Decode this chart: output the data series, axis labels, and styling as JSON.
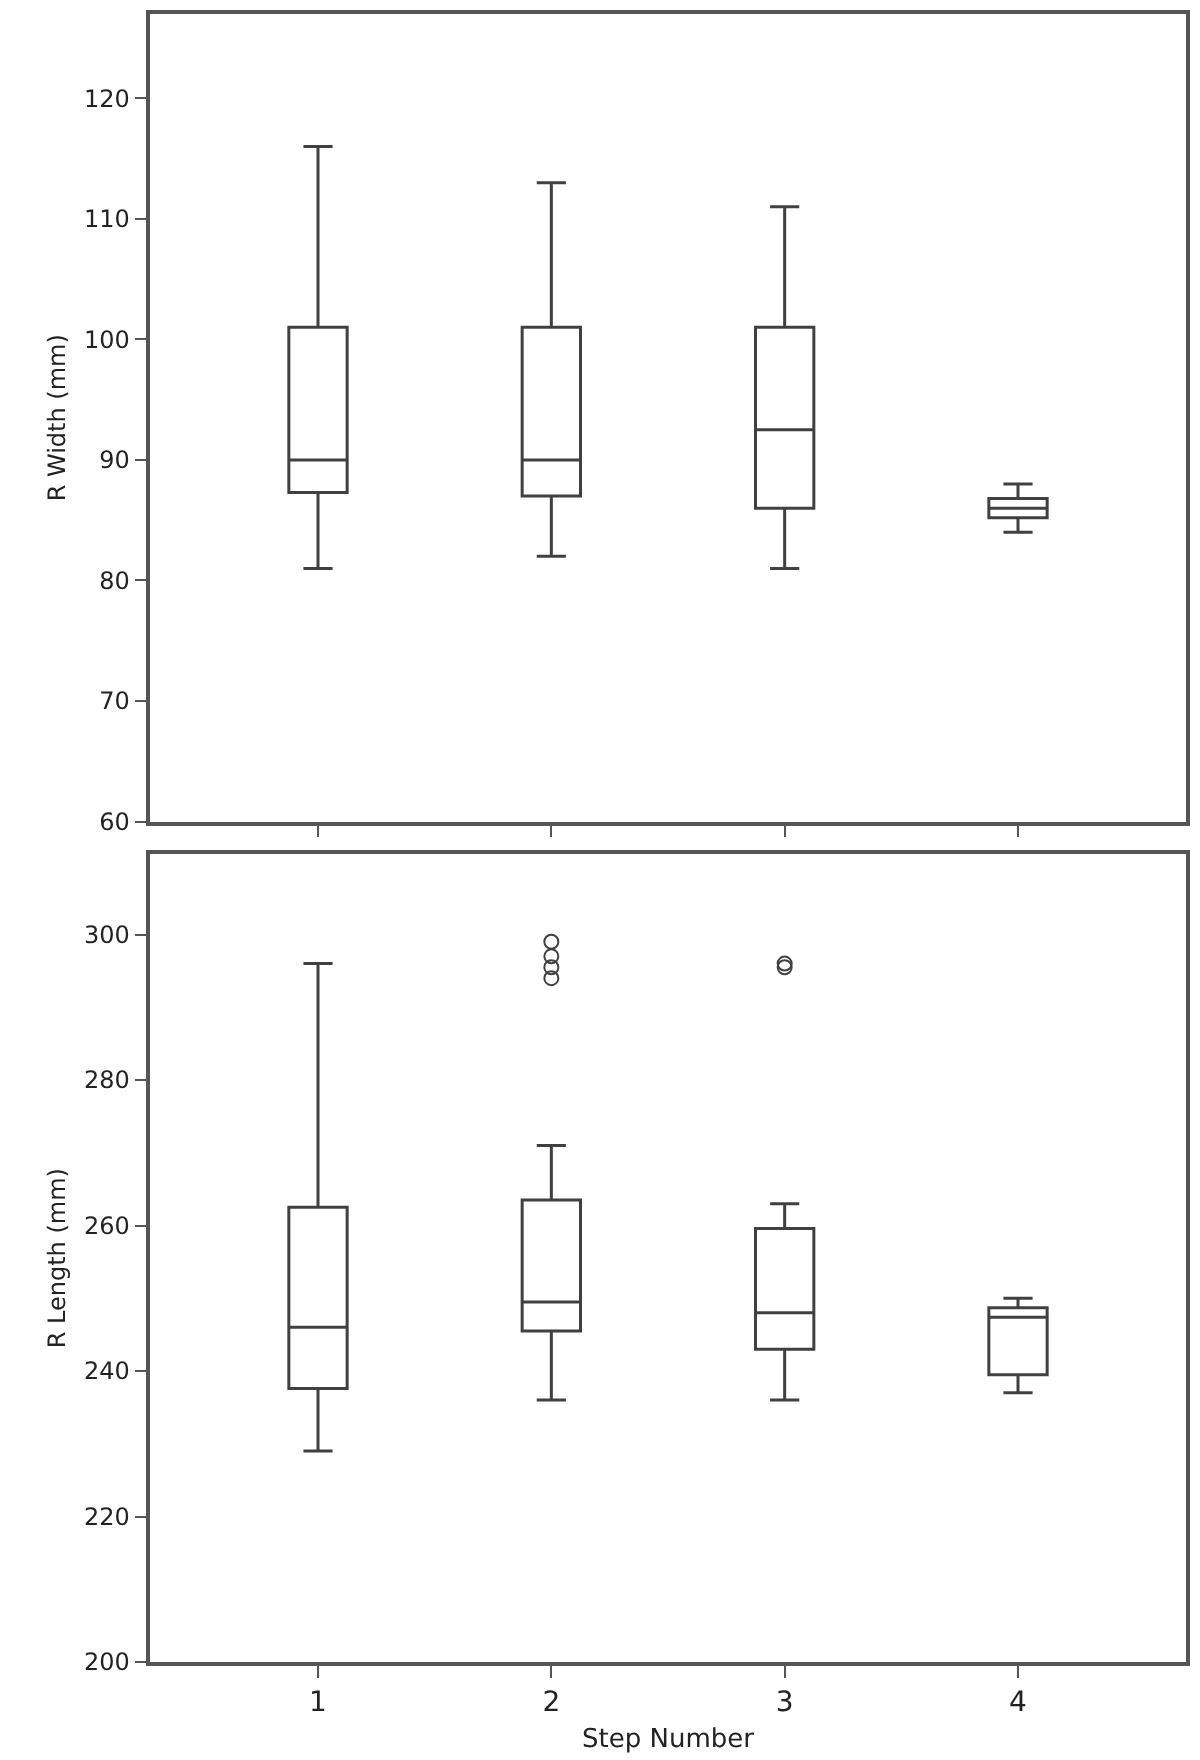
{
  "chart_data": [
    {
      "type": "box",
      "ylabel": "R Width (mm)",
      "categories": [
        "1",
        "2",
        "3",
        "4"
      ],
      "color": "#404040",
      "ylim": [
        60,
        127
      ],
      "yticks": [
        60,
        70,
        80,
        90,
        100,
        110,
        120
      ],
      "tick_labels": "y",
      "boxes": [
        {
          "low": 81,
          "q1": 87.3,
          "median": 90,
          "q3": 101,
          "high": 116
        },
        {
          "low": 82,
          "q1": 87,
          "median": 90,
          "q3": 101,
          "high": 113
        },
        {
          "low": 81,
          "q1": 86,
          "median": 92.5,
          "q3": 101,
          "high": 111
        },
        {
          "low": 84,
          "q1": 85.2,
          "median": 86,
          "q3": 86.8,
          "high": 88
        }
      ]
    },
    {
      "type": "box",
      "ylabel": "R Length (mm)",
      "xlabel": "Step Number",
      "categories": [
        "1",
        "2",
        "3",
        "4"
      ],
      "color": "#404040",
      "ylim": [
        200,
        311
      ],
      "yticks": [
        200,
        220,
        240,
        260,
        280,
        300
      ],
      "boxes": [
        {
          "low": 229,
          "q1": 237.6,
          "median": 246,
          "q3": 262.5,
          "high": 296
        },
        {
          "low": 236,
          "q1": 245.5,
          "median": 249.5,
          "q3": 263.5,
          "high": 271,
          "outliers": [
            299,
            297,
            295.5,
            294
          ]
        },
        {
          "low": 236,
          "q1": 243,
          "median": 248,
          "q3": 259.6,
          "high": 263,
          "outliers": [
            296,
            295.5
          ]
        },
        {
          "low": 237,
          "q1": 239.5,
          "median": 247.4,
          "q3": 248.7,
          "high": 250
        }
      ]
    }
  ]
}
